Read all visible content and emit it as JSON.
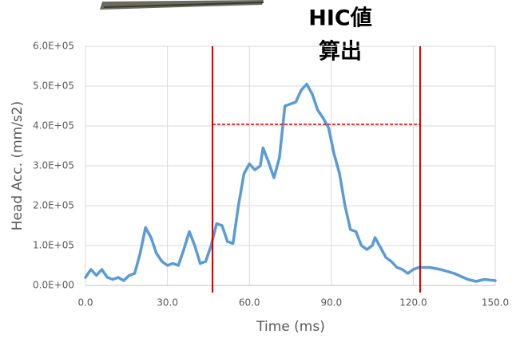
{
  "chart_data": {
    "type": "line",
    "annotation": [
      "HIC値",
      "算出"
    ],
    "x_label": "Time (ms)",
    "y_label": "Head Acc. (mm/s2)",
    "xlim": [
      0,
      150
    ],
    "xticks": [
      {
        "value": 0,
        "label": "0.0"
      },
      {
        "value": 30,
        "label": "30.0"
      },
      {
        "value": 60,
        "label": "60.0"
      },
      {
        "value": 90,
        "label": "90.0"
      },
      {
        "value": 120,
        "label": "120.0"
      },
      {
        "value": 150,
        "label": "150.0"
      }
    ],
    "ylim": [
      0,
      600000
    ],
    "yticks": [
      {
        "value": 0,
        "label": "0.0E+00"
      },
      {
        "value": 100000,
        "label": "1.0E+05"
      },
      {
        "value": 200000,
        "label": "2.0E+05"
      },
      {
        "value": 300000,
        "label": "3.0E+05"
      },
      {
        "value": 400000,
        "label": "4.0E+05"
      },
      {
        "value": 500000,
        "label": "5.0E+05"
      },
      {
        "value": 600000,
        "label": "6.0E+05"
      }
    ],
    "grid": true,
    "hic_window": {
      "x": [
        46.5,
        122.5
      ],
      "y": 404000,
      "color": "#cc0000"
    },
    "series": [
      {
        "color": "#5b9bd5",
        "x": [
          0,
          2,
          4,
          6,
          8,
          10,
          12,
          14,
          16,
          18,
          20,
          22,
          24,
          26,
          28,
          30,
          32,
          34,
          36,
          38,
          40,
          42,
          44,
          46,
          48,
          50,
          52,
          54,
          56,
          58,
          60,
          62,
          64,
          65,
          67,
          69,
          71,
          73,
          75,
          77,
          79,
          81,
          83,
          85,
          87,
          89,
          91,
          93,
          95,
          97,
          99,
          101,
          103,
          105,
          106,
          108,
          110,
          112,
          114,
          116,
          118,
          120,
          122,
          126,
          130,
          135,
          140,
          143,
          146,
          150
        ],
        "values": [
          20000,
          40000,
          25000,
          40000,
          20000,
          15000,
          20000,
          12000,
          25000,
          30000,
          80000,
          145000,
          120000,
          80000,
          60000,
          50000,
          55000,
          50000,
          90000,
          135000,
          100000,
          55000,
          60000,
          100000,
          155000,
          150000,
          110000,
          105000,
          200000,
          280000,
          305000,
          290000,
          300000,
          345000,
          310000,
          270000,
          320000,
          450000,
          455000,
          460000,
          490000,
          505000,
          480000,
          440000,
          420000,
          395000,
          330000,
          280000,
          200000,
          140000,
          135000,
          100000,
          90000,
          100000,
          120000,
          95000,
          70000,
          60000,
          45000,
          40000,
          30000,
          40000,
          45000,
          45000,
          40000,
          30000,
          15000,
          10000,
          15000,
          12000
        ]
      }
    ]
  }
}
